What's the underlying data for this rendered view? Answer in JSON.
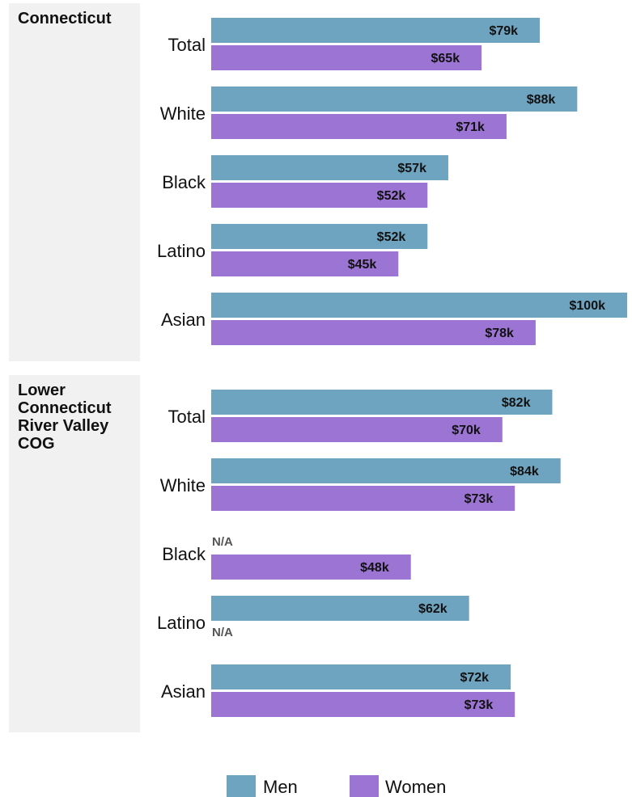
{
  "colors": {
    "men": "#6fa4c1",
    "women": "#9b74d4",
    "panel_bg": "#f1f1f1",
    "na_text": "#555555"
  },
  "na_text": "N/A",
  "chart_data": [
    {
      "type": "bar",
      "orientation": "horizontal",
      "title": "Connecticut",
      "title_lines": [
        "Connecticut"
      ],
      "categories": [
        "Total",
        "White",
        "Black",
        "Latino",
        "Asian"
      ],
      "series": [
        {
          "name": "Men",
          "values": [
            79,
            88,
            57,
            52,
            100
          ],
          "labels": [
            "$79k",
            "$88k",
            "$57k",
            "$52k",
            "$100k"
          ]
        },
        {
          "name": "Women",
          "values": [
            65,
            71,
            52,
            45,
            78
          ],
          "labels": [
            "$65k",
            "$71k",
            "$52k",
            "$45k",
            "$78k"
          ]
        }
      ],
      "unit": "$k",
      "xlim": [
        0,
        100
      ]
    },
    {
      "type": "bar",
      "orientation": "horizontal",
      "title": "Lower Connecticut River Valley COG",
      "title_lines": [
        "Lower",
        "Connecticut",
        "River Valley",
        "COG"
      ],
      "categories": [
        "Total",
        "White",
        "Black",
        "Latino",
        "Asian"
      ],
      "series": [
        {
          "name": "Men",
          "values": [
            82,
            84,
            null,
            62,
            72
          ],
          "labels": [
            "$82k",
            "$84k",
            "N/A",
            "$62k",
            "$72k"
          ]
        },
        {
          "name": "Women",
          "values": [
            70,
            73,
            48,
            null,
            73
          ],
          "labels": [
            "$70k",
            "$73k",
            "$48k",
            "N/A",
            "$73k"
          ]
        }
      ],
      "unit": "$k",
      "xlim": [
        0,
        100
      ]
    }
  ],
  "legend": {
    "position": "bottom",
    "items": [
      {
        "label": "Men",
        "color": "#6fa4c1"
      },
      {
        "label": "Women",
        "color": "#9b74d4"
      }
    ]
  }
}
